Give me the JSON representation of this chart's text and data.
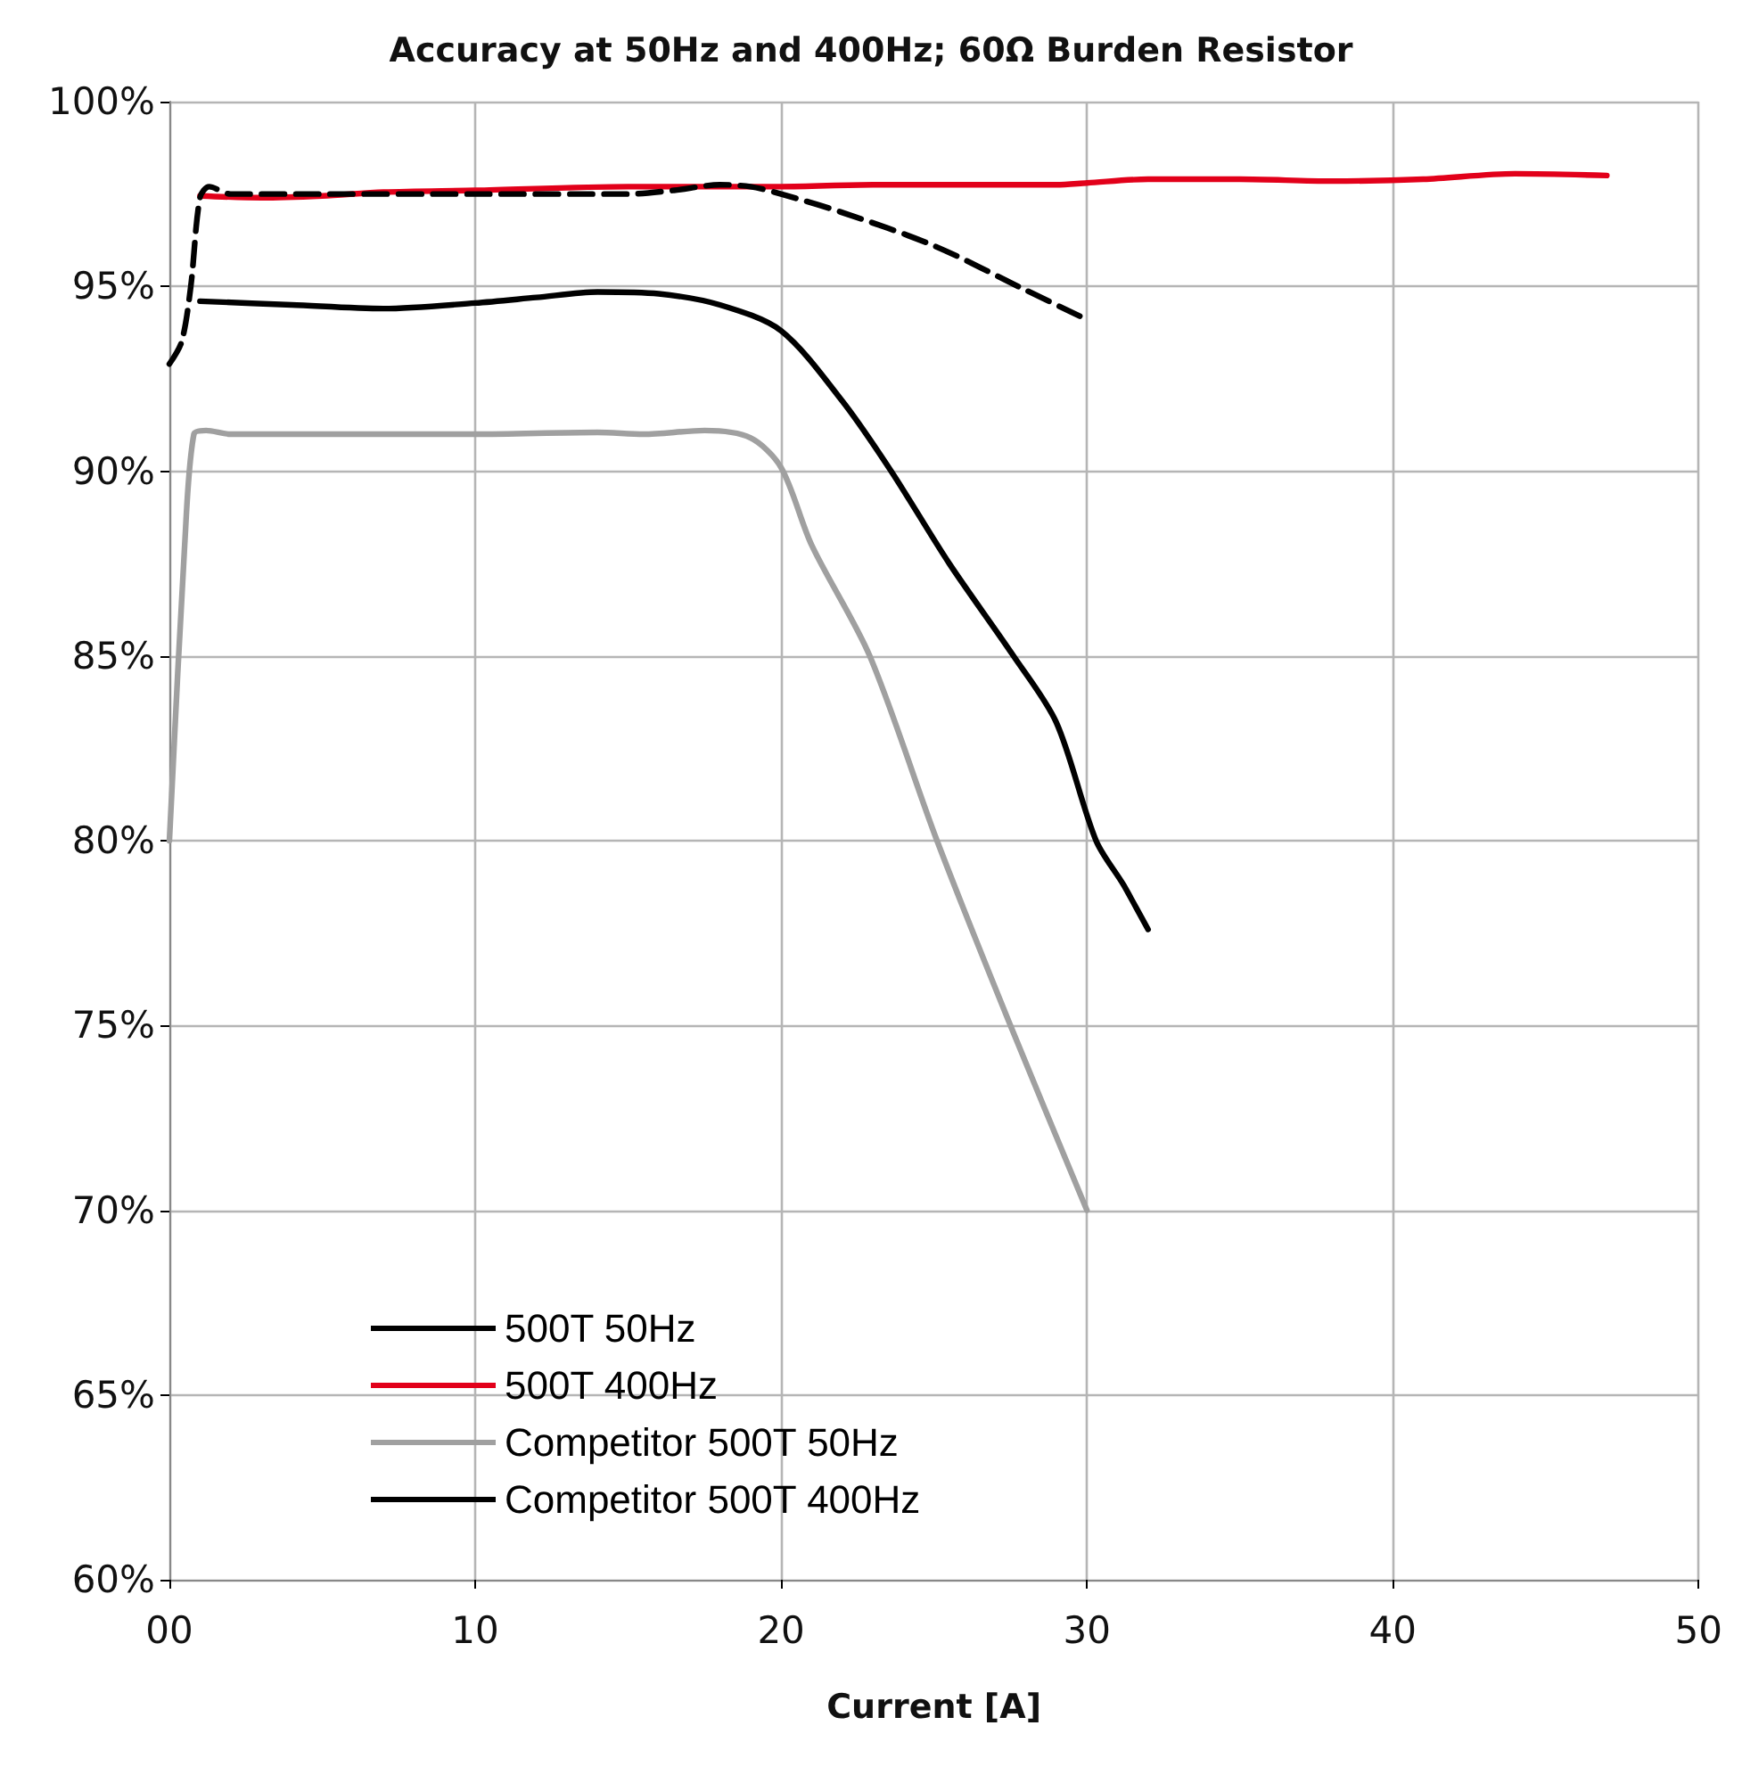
{
  "chart_data": {
    "type": "line",
    "title": "Accuracy at 50Hz and 400Hz; 60Ω Burden Resistor",
    "xlabel": "Current [A]",
    "xlim": [
      0,
      50
    ],
    "xticks": [
      {
        "value": 0,
        "label": "00"
      },
      10,
      20,
      30,
      40,
      50
    ],
    "ylim": [
      60,
      100
    ],
    "yticks": [
      {
        "value": 60,
        "label": "60%"
      },
      {
        "value": 65,
        "label": "65%"
      },
      {
        "value": 70,
        "label": "70%"
      },
      {
        "value": 75,
        "label": "75%"
      },
      {
        "value": 80,
        "label": "80%"
      },
      {
        "value": 85,
        "label": "85%"
      },
      {
        "value": 90,
        "label": "90%"
      },
      {
        "value": 95,
        "label": "95%"
      },
      {
        "value": 100,
        "label": "100%"
      }
    ],
    "grid": true,
    "legend": "bottom left",
    "marker": "none",
    "series": [
      {
        "name": "500T 50Hz",
        "color": "#000000",
        "x": [
          1,
          4,
          7,
          10,
          12,
          14,
          16,
          18,
          20,
          22,
          23.6,
          25.5,
          27.6,
          29,
          30.3,
          31.2,
          32
        ],
        "values": [
          94.6,
          94.5,
          94.4,
          94.55,
          94.7,
          94.85,
          94.8,
          94.5,
          93.8,
          91.9,
          90,
          87.5,
          85,
          83.2,
          80,
          78.8,
          77.6
        ]
      },
      {
        "name": "500T 400Hz",
        "color": "#e2001a",
        "x": [
          1,
          3,
          5,
          7,
          10,
          15,
          18,
          20,
          23,
          26,
          29,
          30,
          32,
          35,
          38,
          41,
          44,
          47
        ],
        "values": [
          97.45,
          97.4,
          97.45,
          97.55,
          97.6,
          97.7,
          97.7,
          97.7,
          97.75,
          97.75,
          97.75,
          97.8,
          97.9,
          97.9,
          97.85,
          97.9,
          98.05,
          98
        ]
      },
      {
        "name": "Competitor 500T 50Hz",
        "color": "#a0a0a0",
        "x": [
          0,
          0.5,
          0.8,
          1.2,
          2,
          5,
          10,
          14,
          15.5,
          17.5,
          19,
          20,
          21,
          22.9,
          25.1,
          27.5,
          30
        ],
        "values": [
          80,
          88,
          91,
          91.1,
          91,
          91,
          91,
          91.05,
          91,
          91.1,
          90.9,
          90.1,
          88,
          85,
          80,
          75,
          70
        ]
      },
      {
        "name": "Competitor 500T 400Hz",
        "color": "#000000",
        "line_style": "dashed",
        "x": [
          0,
          0.4,
          0.7,
          1,
          1.3,
          2,
          5,
          10,
          15,
          16.5,
          18,
          19,
          20,
          22,
          25,
          28,
          30
        ],
        "values": [
          92.9,
          93.5,
          95,
          97.4,
          97.7,
          97.5,
          97.5,
          97.5,
          97.5,
          97.6,
          97.75,
          97.7,
          97.5,
          97,
          96.1,
          94.9,
          94.1
        ]
      }
    ]
  }
}
